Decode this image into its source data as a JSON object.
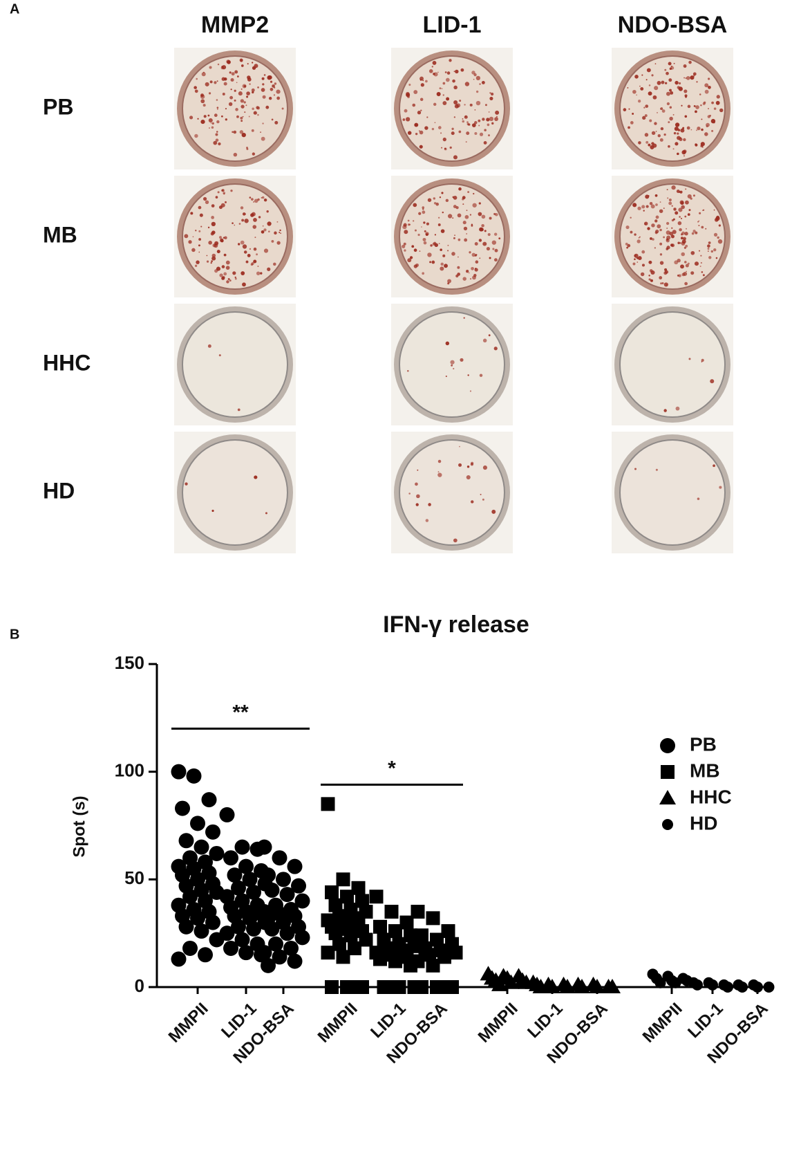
{
  "panel_a": {
    "label": "A",
    "columns": [
      "MMP2",
      "LID-1",
      "NDO-BSA"
    ],
    "rows": [
      "PB",
      "MB",
      "HHC",
      "HD"
    ]
  },
  "panel_b": {
    "label": "B"
  },
  "chart_data": {
    "type": "strip",
    "title": "IFN-γ release",
    "y_label": "Spot (s)",
    "categories": [
      "MMPII",
      "LID-1",
      "NDO-BSA",
      "MMPII",
      "LID-1",
      "NDO-BSA",
      "MMPII",
      "LID-1",
      "NDO-BSA",
      "MMPII",
      "LID-1",
      "NDO-BSA"
    ],
    "ylim": [
      0,
      150
    ],
    "yticks": [
      0,
      50,
      100,
      150
    ],
    "series": [
      {
        "name": "PB",
        "marker": "circle",
        "color": "#000000",
        "values": [
          [
            100,
            98,
            87,
            83,
            76,
            72,
            68,
            65,
            62,
            60,
            58,
            56,
            55,
            53,
            52,
            50,
            48,
            47,
            45,
            44,
            42,
            40,
            38,
            36,
            35,
            33,
            32,
            30,
            28,
            26,
            22,
            18,
            15,
            13
          ],
          [
            80,
            65,
            64,
            60,
            56,
            54,
            52,
            50,
            48,
            46,
            44,
            42,
            40,
            38,
            37,
            35,
            34,
            33,
            32,
            30,
            28,
            27,
            25,
            22,
            20,
            18,
            16,
            15
          ],
          [
            65,
            60,
            56,
            52,
            50,
            47,
            45,
            43,
            40,
            38,
            36,
            35,
            34,
            33,
            32,
            30,
            28,
            27,
            25,
            23,
            20,
            18,
            16,
            14,
            12,
            10
          ],
          null,
          null,
          null,
          null,
          null,
          null,
          null,
          null,
          null
        ]
      },
      {
        "name": "MB",
        "marker": "square",
        "color": "#000000",
        "values": [
          null,
          null,
          null,
          [
            85,
            50,
            46,
            44,
            42,
            40,
            38,
            36,
            35,
            33,
            32,
            31,
            30,
            29,
            28,
            27,
            26,
            25,
            24,
            22,
            20,
            18,
            16,
            14,
            0,
            0,
            0,
            0
          ],
          [
            42,
            35,
            30,
            28,
            26,
            24,
            22,
            20,
            19,
            18,
            17,
            16,
            15,
            14,
            13,
            12,
            10,
            0,
            0,
            0,
            0
          ],
          [
            35,
            32,
            26,
            24,
            22,
            20,
            18,
            17,
            16,
            15,
            14,
            12,
            10,
            0,
            0,
            0,
            0
          ],
          null,
          null,
          null,
          null,
          null,
          null
        ]
      },
      {
        "name": "HHC",
        "marker": "triangle",
        "color": "#000000",
        "values": [
          null,
          null,
          null,
          null,
          null,
          null,
          [
            6,
            5,
            5,
            4,
            4,
            3,
            3,
            2,
            2,
            1
          ],
          [
            2,
            1,
            1,
            1,
            0,
            0,
            0
          ],
          [
            1,
            1,
            0,
            0,
            0,
            0
          ],
          null,
          null,
          null
        ]
      },
      {
        "name": "HD",
        "marker": "dot",
        "color": "#000000",
        "values": [
          null,
          null,
          null,
          null,
          null,
          null,
          null,
          null,
          null,
          [
            6,
            5,
            4,
            4,
            3,
            3,
            2,
            2
          ],
          [
            2,
            2,
            1,
            1,
            1,
            0
          ],
          [
            1,
            1,
            0,
            0,
            0
          ]
        ]
      }
    ],
    "annotations": [
      {
        "text": "**",
        "y": 120
      },
      {
        "text": "*",
        "y": 94
      }
    ]
  }
}
